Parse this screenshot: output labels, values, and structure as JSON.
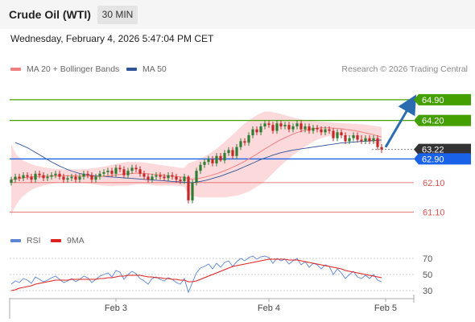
{
  "header": {
    "title": "Crude Oil (WTI)",
    "timeframe": "30 MIN",
    "timestamp": "Wednesday, February 4, 2026 5:47:04 PM CET"
  },
  "legend": {
    "ma20_label": "MA 20 + Bollinger Bands",
    "ma50_label": "MA 50",
    "credit": "Research © 2026 Trading Central"
  },
  "colors": {
    "ma20": "#f08080",
    "ma50": "#2f5597",
    "band": "#fbd3d5",
    "candle_up": "#2e7d32",
    "candle_down": "#c62828",
    "target_line": "#44a000",
    "pivot_line": "#1a63e8",
    "support_line": "#e05050",
    "rsi": "#5b86d6",
    "rsi_ma": "#e02020",
    "arrow": "#2b6cb0",
    "price_badge": "#333333"
  },
  "chart_data": {
    "type": "candlestick",
    "instrument": "Crude Oil (WTI)",
    "interval": "30 MIN",
    "ylim": [
      60.6,
      65.55
    ],
    "levels": [
      {
        "value": 64.9,
        "label": "64.90",
        "kind": "resistance"
      },
      {
        "value": 64.2,
        "label": "64.20",
        "kind": "resistance"
      },
      {
        "value": 62.9,
        "label": "62.90",
        "kind": "pivot"
      },
      {
        "value": 62.1,
        "label": "62.10",
        "kind": "support"
      },
      {
        "value": 61.1,
        "label": "61.10",
        "kind": "support"
      }
    ],
    "last_price": {
      "value": 63.22,
      "label": "63.22"
    },
    "projection": {
      "from_price": 63.3,
      "to_price": 64.9
    },
    "x_ticks": [
      {
        "label": "Feb 3",
        "index": 26
      },
      {
        "label": "Feb 4",
        "index": 64
      },
      {
        "label": "Feb 5",
        "index": 93
      }
    ],
    "candles": {
      "count": 93,
      "close": [
        62.2,
        62.3,
        62.25,
        62.35,
        62.3,
        62.2,
        62.4,
        62.35,
        62.25,
        62.3,
        62.35,
        62.4,
        62.3,
        62.2,
        62.25,
        62.3,
        62.2,
        62.3,
        62.4,
        62.35,
        62.2,
        62.3,
        62.4,
        62.45,
        62.5,
        62.4,
        62.6,
        62.55,
        62.35,
        62.5,
        62.6,
        62.55,
        62.4,
        62.3,
        62.2,
        62.3,
        62.35,
        62.3,
        62.25,
        62.35,
        62.3,
        62.2,
        62.15,
        62.3,
        61.5,
        62.1,
        62.5,
        62.7,
        62.8,
        62.9,
        62.75,
        63.0,
        62.85,
        63.1,
        63.2,
        63.0,
        63.3,
        63.5,
        63.45,
        63.7,
        63.9,
        63.8,
        64.0,
        64.1,
        64.05,
        63.85,
        64.1,
        64.0,
        64.05,
        63.9,
        64.0,
        64.1,
        63.9,
        64.0,
        63.85,
        63.95,
        63.9,
        63.8,
        63.9,
        63.85,
        63.6,
        63.8,
        63.7,
        63.5,
        63.6,
        63.7,
        63.55,
        63.5,
        63.6,
        63.5,
        63.6,
        63.3,
        63.22
      ],
      "open": [
        62.1,
        62.2,
        62.3,
        62.25,
        62.35,
        62.3,
        62.2,
        62.4,
        62.35,
        62.25,
        62.3,
        62.35,
        62.4,
        62.3,
        62.2,
        62.25,
        62.3,
        62.2,
        62.3,
        62.4,
        62.35,
        62.2,
        62.3,
        62.4,
        62.45,
        62.5,
        62.4,
        62.6,
        62.55,
        62.35,
        62.5,
        62.6,
        62.55,
        62.4,
        62.3,
        62.2,
        62.3,
        62.35,
        62.3,
        62.25,
        62.35,
        62.3,
        62.2,
        62.15,
        62.3,
        61.5,
        62.1,
        62.5,
        62.7,
        62.8,
        62.9,
        62.75,
        63.0,
        62.85,
        63.1,
        63.2,
        63.0,
        63.3,
        63.5,
        63.45,
        63.7,
        63.9,
        63.8,
        64.0,
        64.1,
        64.05,
        63.85,
        64.1,
        64.0,
        64.05,
        63.9,
        64.0,
        64.1,
        63.9,
        64.0,
        63.85,
        63.95,
        63.9,
        63.8,
        63.9,
        63.85,
        63.6,
        63.8,
        63.7,
        63.5,
        63.6,
        63.7,
        63.55,
        63.5,
        63.6,
        63.5,
        63.6,
        63.3
      ],
      "high": [
        62.3,
        62.4,
        62.4,
        62.45,
        62.45,
        62.4,
        62.5,
        62.5,
        62.45,
        62.4,
        62.45,
        62.5,
        62.5,
        62.4,
        62.35,
        62.4,
        62.4,
        62.4,
        62.5,
        62.5,
        62.45,
        62.4,
        62.5,
        62.55,
        62.6,
        62.6,
        62.7,
        62.7,
        62.65,
        62.6,
        62.7,
        62.7,
        62.65,
        62.5,
        62.4,
        62.4,
        62.45,
        62.45,
        62.4,
        62.45,
        62.45,
        62.4,
        62.3,
        62.4,
        62.35,
        62.2,
        62.6,
        62.8,
        62.9,
        63.0,
        63.0,
        63.1,
        63.1,
        63.2,
        63.3,
        63.3,
        63.4,
        63.6,
        63.6,
        63.8,
        64.0,
        64.0,
        64.1,
        64.2,
        64.2,
        64.15,
        64.2,
        64.2,
        64.15,
        64.15,
        64.1,
        64.2,
        64.2,
        64.1,
        64.1,
        64.05,
        64.05,
        64.0,
        64.0,
        64.0,
        63.95,
        63.9,
        63.9,
        63.8,
        63.7,
        63.8,
        63.8,
        63.7,
        63.7,
        63.7,
        63.7,
        63.7,
        63.4
      ],
      "low": [
        62.0,
        62.1,
        62.15,
        62.15,
        62.2,
        62.1,
        62.1,
        62.25,
        62.15,
        62.15,
        62.2,
        62.25,
        62.2,
        62.1,
        62.1,
        62.15,
        62.1,
        62.1,
        62.2,
        62.25,
        62.1,
        62.1,
        62.2,
        62.3,
        62.35,
        62.3,
        62.3,
        62.45,
        62.25,
        62.25,
        62.4,
        62.45,
        62.3,
        62.2,
        62.1,
        62.1,
        62.2,
        62.2,
        62.15,
        62.15,
        62.2,
        62.1,
        62.05,
        62.05,
        61.4,
        61.4,
        62.0,
        62.4,
        62.6,
        62.7,
        62.65,
        62.65,
        62.8,
        62.75,
        63.0,
        62.9,
        62.9,
        63.2,
        63.35,
        63.35,
        63.6,
        63.7,
        63.7,
        63.9,
        63.95,
        63.75,
        63.75,
        63.9,
        63.9,
        63.8,
        63.8,
        63.9,
        63.8,
        63.8,
        63.75,
        63.75,
        63.8,
        63.7,
        63.7,
        63.75,
        63.5,
        63.5,
        63.6,
        63.4,
        63.4,
        63.5,
        63.45,
        63.4,
        63.4,
        63.4,
        63.4,
        63.2,
        63.1
      ]
    },
    "ma20": [
      62.2,
      62.22,
      62.24,
      62.26,
      62.28,
      62.29,
      62.3,
      62.31,
      62.31,
      62.32,
      62.32,
      62.33,
      62.33,
      62.33,
      62.33,
      62.33,
      62.32,
      62.32,
      62.32,
      62.32,
      62.31,
      62.31,
      62.31,
      62.32,
      62.33,
      62.34,
      62.36,
      62.38,
      62.39,
      62.4,
      62.41,
      62.42,
      62.42,
      62.41,
      62.4,
      62.38,
      62.37,
      62.36,
      62.34,
      62.33,
      62.32,
      62.31,
      62.29,
      62.28,
      62.23,
      62.22,
      62.23,
      62.25,
      62.28,
      62.32,
      62.36,
      62.4,
      62.45,
      62.5,
      62.56,
      62.62,
      62.68,
      62.75,
      62.82,
      62.9,
      62.98,
      63.06,
      63.15,
      63.24,
      63.32,
      63.4,
      63.48,
      63.55,
      63.62,
      63.68,
      63.74,
      63.79,
      63.83,
      63.87,
      63.9,
      63.92,
      63.94,
      63.95,
      63.95,
      63.95,
      63.94,
      63.93,
      63.92,
      63.9,
      63.88,
      63.86,
      63.84,
      63.81,
      63.78,
      63.75,
      63.72,
      63.68,
      63.64
    ],
    "bollinger_upper": [
      63.4,
      63.1,
      62.95,
      62.85,
      62.78,
      62.72,
      62.68,
      62.65,
      62.62,
      62.6,
      62.58,
      62.57,
      62.56,
      62.55,
      62.55,
      62.55,
      62.55,
      62.55,
      62.56,
      62.57,
      62.58,
      62.6,
      62.62,
      62.64,
      62.67,
      62.7,
      62.73,
      62.76,
      62.78,
      62.8,
      62.8,
      62.8,
      62.79,
      62.78,
      62.76,
      62.74,
      62.72,
      62.7,
      62.68,
      62.66,
      62.64,
      62.62,
      62.6,
      62.6,
      62.75,
      62.8,
      62.85,
      62.9,
      62.98,
      63.06,
      63.15,
      63.25,
      63.36,
      63.48,
      63.6,
      63.72,
      63.85,
      63.98,
      64.1,
      64.2,
      64.3,
      64.38,
      64.45,
      64.5,
      64.5,
      64.48,
      64.45,
      64.42,
      64.38,
      64.34,
      64.3,
      64.27,
      64.24,
      64.22,
      64.2,
      64.18,
      64.17,
      64.16,
      64.15,
      64.14,
      64.13,
      64.12,
      64.11,
      64.1,
      64.1,
      64.09,
      64.08,
      64.07,
      64.06,
      64.04,
      64.02,
      64.0,
      63.98
    ],
    "bollinger_lower": [
      61.0,
      61.3,
      61.5,
      61.65,
      61.76,
      61.85,
      61.91,
      61.96,
      62.0,
      62.03,
      62.06,
      62.08,
      62.1,
      62.11,
      62.11,
      62.11,
      62.1,
      62.09,
      62.08,
      62.07,
      62.05,
      62.03,
      62.01,
      62.0,
      61.99,
      61.98,
      61.99,
      62.0,
      62.0,
      62.0,
      62.02,
      62.04,
      62.05,
      62.05,
      62.04,
      62.02,
      62.0,
      62.0,
      62.0,
      62.0,
      62.0,
      62.0,
      61.98,
      61.96,
      61.7,
      61.65,
      61.62,
      61.6,
      61.6,
      61.6,
      61.6,
      61.6,
      61.6,
      61.6,
      61.62,
      61.64,
      61.66,
      61.7,
      61.75,
      61.8,
      61.88,
      61.96,
      62.05,
      62.15,
      62.28,
      62.42,
      62.55,
      62.68,
      62.8,
      62.92,
      63.02,
      63.12,
      63.22,
      63.32,
      63.4,
      63.48,
      63.55,
      63.6,
      63.64,
      63.67,
      63.68,
      63.69,
      63.69,
      63.68,
      63.66,
      63.63,
      63.6,
      63.56,
      63.52,
      63.48,
      63.44,
      63.4,
      63.35
    ],
    "ma50_start_index": 1,
    "ma50": [
      63.45,
      63.4,
      63.34,
      63.28,
      63.2,
      63.12,
      63.04,
      62.96,
      62.88,
      62.8,
      62.73,
      62.66,
      62.6,
      62.54,
      62.49,
      62.45,
      62.41,
      62.38,
      62.36,
      62.34,
      62.33,
      62.32,
      62.31,
      62.3,
      62.29,
      62.28,
      62.27,
      62.26,
      62.25,
      62.24,
      62.23,
      62.22,
      62.21,
      62.2,
      62.19,
      62.18,
      62.17,
      62.16,
      62.15,
      62.14,
      62.13,
      62.12,
      62.11,
      62.1,
      62.1,
      62.12,
      62.14,
      62.17,
      62.2,
      62.24,
      62.28,
      62.32,
      62.37,
      62.42,
      62.47,
      62.52,
      62.58,
      62.64,
      62.7,
      62.76,
      62.82,
      62.88,
      62.93,
      62.98,
      63.03,
      63.07,
      63.11,
      63.14,
      63.17,
      63.2,
      63.22,
      63.24,
      63.26,
      63.28,
      63.3,
      63.32,
      63.34,
      63.36,
      63.38,
      63.4,
      63.42,
      63.44,
      63.45,
      63.46,
      63.47,
      63.48,
      63.49,
      63.5,
      63.51,
      63.52,
      63.53,
      63.54
    ],
    "rsi_panel": {
      "legend": {
        "rsi_label": "RSI",
        "ma_label": "9MA"
      },
      "ylim": [
        20,
        80
      ],
      "ticks": [
        {
          "value": 70,
          "label": "70"
        },
        {
          "value": 50,
          "label": "50"
        },
        {
          "value": 30,
          "label": "30"
        }
      ],
      "rsi": [
        38,
        42,
        40,
        45,
        43,
        39,
        47,
        44,
        41,
        43,
        46,
        48,
        44,
        40,
        42,
        45,
        41,
        44,
        48,
        46,
        40,
        44,
        48,
        50,
        52,
        47,
        55,
        53,
        44,
        50,
        54,
        51,
        45,
        42,
        38,
        45,
        47,
        44,
        42,
        46,
        44,
        40,
        38,
        45,
        28,
        40,
        52,
        58,
        60,
        63,
        57,
        64,
        59,
        65,
        67,
        60,
        66,
        70,
        67,
        71,
        73,
        69,
        72,
        73,
        71,
        64,
        70,
        67,
        69,
        63,
        67,
        70,
        62,
        66,
        59,
        64,
        62,
        57,
        62,
        60,
        50,
        57,
        52,
        45,
        50,
        54,
        47,
        45,
        49,
        45,
        50,
        43,
        41
      ],
      "rsi_ma": [
        30,
        31,
        33,
        34,
        35,
        36,
        38,
        39,
        40,
        41,
        42,
        43,
        43,
        43,
        43,
        44,
        44,
        44,
        44,
        44,
        44,
        44,
        45,
        45,
        46,
        46,
        47,
        48,
        48,
        49,
        49,
        49,
        49,
        48,
        47,
        47,
        46,
        46,
        45,
        45,
        44,
        44,
        43,
        43,
        41,
        41,
        42,
        44,
        46,
        48,
        50,
        52,
        54,
        56,
        58,
        60,
        61,
        62,
        63,
        64,
        65,
        66,
        67,
        68,
        69,
        69,
        69,
        69,
        69,
        68,
        68,
        68,
        67,
        66,
        65,
        64,
        63,
        62,
        61,
        60,
        59,
        58,
        57,
        55,
        54,
        53,
        52,
        51,
        50,
        49,
        48,
        47,
        46
      ]
    }
  }
}
